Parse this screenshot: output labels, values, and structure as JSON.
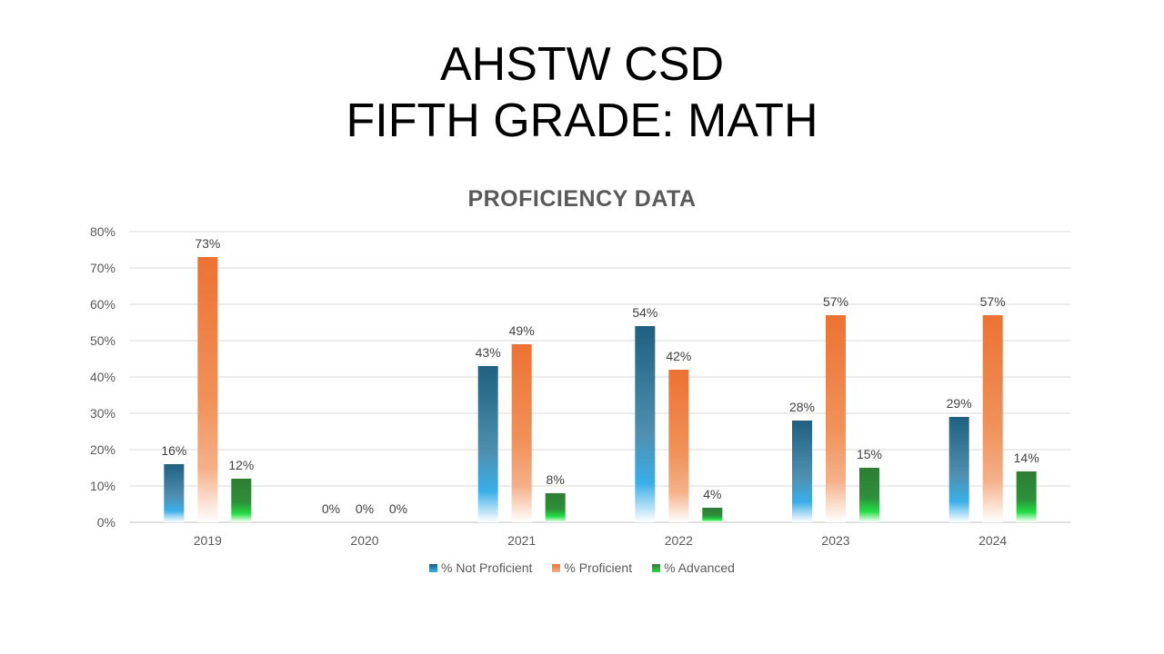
{
  "slide": {
    "title_line1": "AHSTW CSD",
    "title_line2": "FIFTH GRADE: MATH"
  },
  "chart_data": {
    "type": "bar",
    "title": "PROFICIENCY DATA",
    "categories": [
      "2019",
      "2020",
      "2021",
      "2022",
      "2023",
      "2024"
    ],
    "series": [
      {
        "name": "% Not Proficient",
        "values": [
          16,
          0,
          43,
          54,
          28,
          29
        ],
        "color": "#1f5f7f",
        "color_light": "#3aaee8"
      },
      {
        "name": "% Proficient",
        "values": [
          73,
          0,
          49,
          42,
          57,
          57
        ],
        "color": "#ec7233",
        "color_light": "#f5b089"
      },
      {
        "name": "% Advanced",
        "values": [
          12,
          0,
          8,
          4,
          15,
          14
        ],
        "color": "#2e7d32",
        "color_light": "#22dd44"
      }
    ],
    "data_labels": [
      [
        "16%",
        "0%",
        "43%",
        "54%",
        "28%",
        "29%"
      ],
      [
        "73%",
        "0%",
        "49%",
        "42%",
        "57%",
        "57%"
      ],
      [
        "12%",
        "0%",
        "8%",
        "4%",
        "15%",
        "14%"
      ]
    ],
    "y_ticks": [
      "0%",
      "10%",
      "20%",
      "30%",
      "40%",
      "50%",
      "60%",
      "70%",
      "80%"
    ],
    "ylim": [
      0,
      80
    ],
    "grid": true,
    "legend_position": "bottom"
  }
}
